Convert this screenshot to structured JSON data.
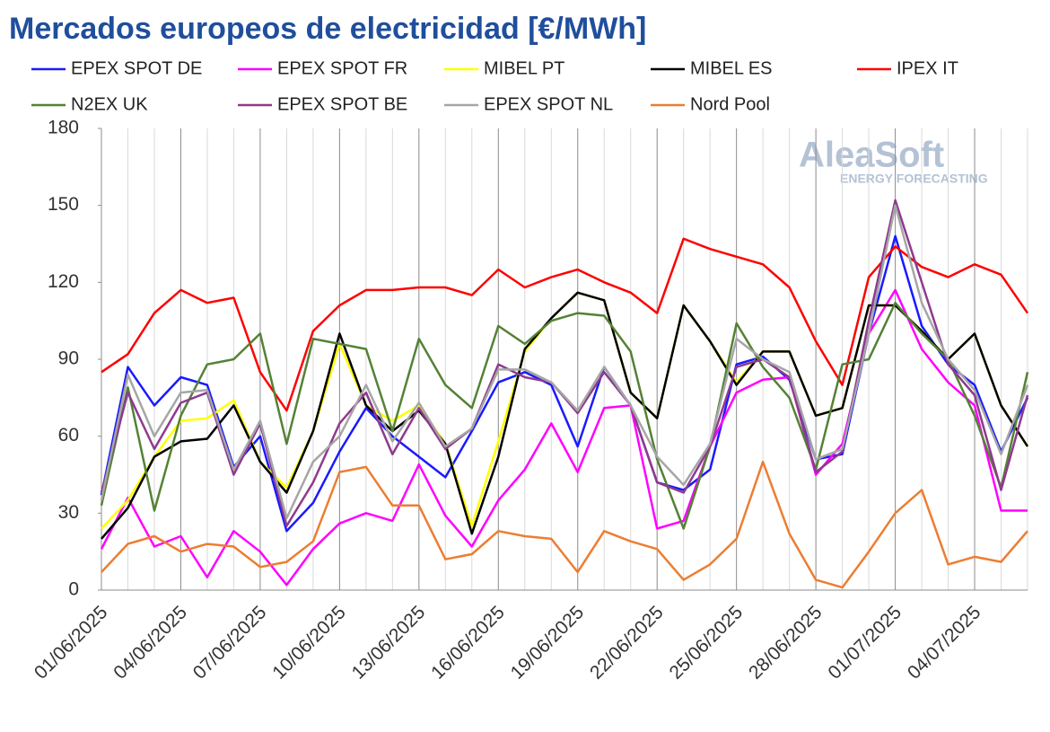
{
  "chart_data": {
    "type": "line",
    "title": "Mercados europeos de electricidad [€/MWh]",
    "watermark": "AleaSoft",
    "watermark_subtitle": "ENERGY FORECASTING",
    "legend": "top",
    "grid": true,
    "categories": [
      "01/06/2025",
      null,
      null,
      "04/06/2025",
      null,
      null,
      "07/06/2025",
      null,
      null,
      "10/06/2025",
      null,
      null,
      "13/06/2025",
      null,
      null,
      "16/06/2025",
      null,
      null,
      "19/06/2025",
      null,
      null,
      "22/06/2025",
      null,
      null,
      "25/06/2025",
      null,
      null,
      "28/06/2025",
      null,
      null,
      "01/07/2025",
      null,
      null,
      "04/07/2025",
      null,
      null
    ],
    "ylim": [
      0,
      180
    ],
    "yticks": [
      0,
      30,
      60,
      90,
      120,
      150,
      180
    ],
    "series": [
      {
        "name": "EPEX SPOT DE",
        "color": "#1a1aff",
        "values": [
          37,
          87,
          72,
          83,
          80,
          48,
          60,
          23,
          34,
          54,
          71,
          60,
          52,
          44,
          62,
          81,
          85,
          80,
          56,
          87,
          72,
          42,
          39,
          47,
          88,
          91,
          82,
          51,
          53,
          100,
          138,
          103,
          88,
          80,
          54,
          75
        ]
      },
      {
        "name": "EPEX SPOT FR",
        "color": "#ff00ff",
        "values": [
          16,
          36,
          17,
          21,
          5,
          23,
          15,
          2,
          16,
          26,
          30,
          27,
          49,
          29,
          17,
          35,
          47,
          65,
          46,
          71,
          72,
          24,
          27,
          56,
          77,
          82,
          83,
          45,
          57,
          100,
          117,
          94,
          81,
          72,
          31,
          31
        ]
      },
      {
        "name": "MIBEL PT",
        "color": "#ffff00",
        "values": [
          24,
          35,
          52,
          66,
          67,
          74,
          50,
          40,
          62,
          96,
          72,
          66,
          72,
          57,
          25,
          58,
          93,
          106,
          116,
          113,
          77,
          67,
          111,
          97,
          81,
          93,
          93,
          68,
          71,
          111,
          111,
          101,
          90,
          100,
          72,
          56
        ]
      },
      {
        "name": "MIBEL ES",
        "color": "#000000",
        "values": [
          20,
          32,
          52,
          58,
          59,
          72,
          50,
          38,
          62,
          100,
          72,
          62,
          70,
          57,
          22,
          52,
          94,
          106,
          116,
          113,
          77,
          67,
          111,
          97,
          80,
          93,
          93,
          68,
          71,
          111,
          111,
          101,
          90,
          100,
          72,
          56
        ]
      },
      {
        "name": "IPEX IT",
        "color": "#ff0000",
        "values": [
          85,
          92,
          108,
          117,
          112,
          114,
          85,
          70,
          101,
          111,
          117,
          117,
          118,
          118,
          115,
          125,
          118,
          122,
          125,
          120,
          116,
          108,
          137,
          133,
          130,
          127,
          118,
          97,
          80,
          122,
          134,
          126,
          122,
          127,
          123,
          108
        ]
      },
      {
        "name": "N2EX UK",
        "color": "#548235",
        "values": [
          33,
          79,
          31,
          68,
          88,
          90,
          100,
          57,
          98,
          96,
          94,
          62,
          98,
          80,
          71,
          103,
          96,
          105,
          108,
          107,
          93,
          51,
          24,
          56,
          104,
          87,
          75,
          47,
          88,
          90,
          112,
          100,
          90,
          68,
          40,
          85
        ]
      },
      {
        "name": "EPEX SPOT BE",
        "color": "#8e3a8e",
        "values": [
          38,
          77,
          55,
          73,
          77,
          45,
          65,
          25,
          42,
          65,
          77,
          53,
          71,
          55,
          63,
          88,
          83,
          81,
          69,
          85,
          72,
          42,
          38,
          56,
          87,
          90,
          83,
          46,
          54,
          105,
          152,
          120,
          88,
          76,
          39,
          76
        ]
      },
      {
        "name": "EPEX SPOT NL",
        "color": "#a6a6a6",
        "values": [
          35,
          84,
          60,
          77,
          78,
          47,
          66,
          28,
          50,
          60,
          80,
          58,
          73,
          56,
          63,
          86,
          86,
          81,
          70,
          87,
          72,
          52,
          41,
          57,
          98,
          90,
          85,
          51,
          55,
          100,
          150,
          112,
          90,
          78,
          53,
          80
        ]
      },
      {
        "name": "Nord Pool",
        "color": "#ed7d31",
        "values": [
          7,
          18,
          21,
          15,
          18,
          17,
          9,
          11,
          19,
          46,
          48,
          33,
          33,
          12,
          14,
          23,
          21,
          20,
          7,
          23,
          19,
          16,
          4,
          10,
          20,
          50,
          22,
          4,
          1,
          15,
          30,
          39,
          10,
          13,
          11,
          23
        ]
      }
    ]
  }
}
